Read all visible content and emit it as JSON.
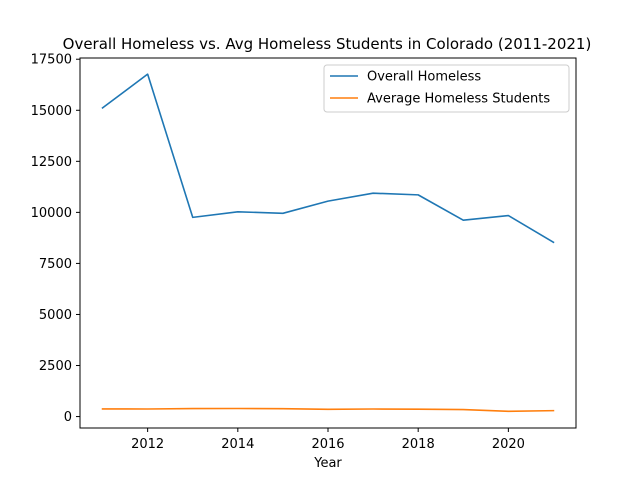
{
  "chart_data": {
    "type": "line",
    "title": "Overall Homeless vs. Avg Homeless Students in Colorado (2011-2021)",
    "xlabel": "Year",
    "ylabel": "",
    "x": [
      2011,
      2012,
      2013,
      2014,
      2015,
      2016,
      2017,
      2018,
      2019,
      2020,
      2021
    ],
    "xlim": [
      2010.5,
      2021.5
    ],
    "ylim": [
      -560,
      17560
    ],
    "xticks": [
      2012,
      2014,
      2016,
      2018,
      2020
    ],
    "xtick_labels": [
      "2012",
      "2014",
      "2016",
      "2018",
      "2020"
    ],
    "yticks": [
      0,
      2500,
      5000,
      7500,
      10000,
      12500,
      15000,
      17500
    ],
    "ytick_labels": [
      "0",
      "2500",
      "5000",
      "7500",
      "10000",
      "12500",
      "15000",
      "17500"
    ],
    "grid": false,
    "legend_position": "top-right",
    "series": [
      {
        "name": "Overall Homeless",
        "color": "#1f77b4",
        "values": [
          15116,
          16768,
          9754,
          10028,
          9953,
          10550,
          10940,
          10857,
          9619,
          9846,
          8536
        ]
      },
      {
        "name": "Average Homeless Students",
        "color": "#ff7f0e",
        "values": [
          375,
          370,
          390,
          395,
          385,
          355,
          370,
          360,
          345,
          255,
          290
        ]
      }
    ]
  }
}
